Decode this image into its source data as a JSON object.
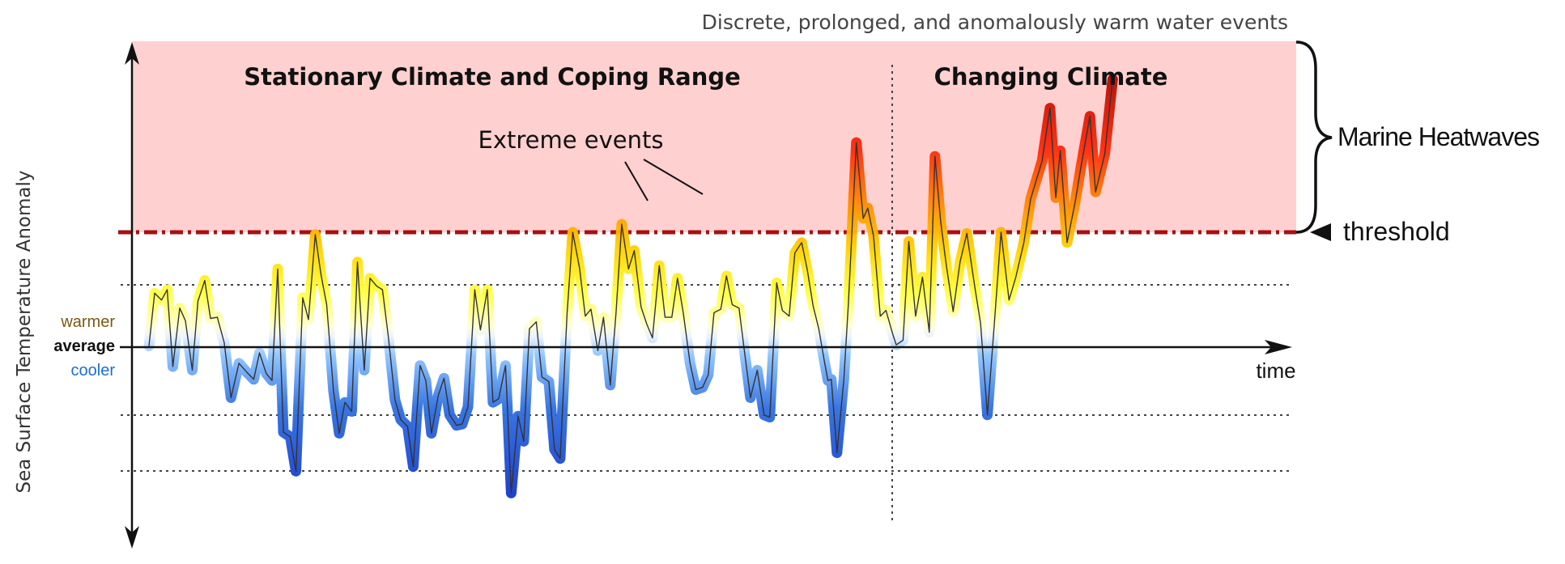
{
  "header_caption": "Discrete, prolonged, and anomalously warm water events",
  "regions": {
    "stationary": "Stationary Climate and Coping Range",
    "changing": "Changing Climate"
  },
  "annotations": {
    "extreme_events": "Extreme events",
    "marine_heatwaves": "Marine Heatwaves",
    "threshold": "threshold"
  },
  "axis": {
    "y_title": "Sea Surface Temperature Anomaly",
    "x_title": "time",
    "y_ticks": {
      "warmer": "warmer",
      "average": "average",
      "cooler": "cooler"
    }
  },
  "colors": {
    "heatwave_band": "#ffd0d0",
    "threshold_line": "#a81010",
    "warmer_label": "#7a5a10",
    "cooler_label": "#1a6fd0",
    "line": "#333333"
  },
  "chart_data": {
    "type": "line",
    "xlabel": "time",
    "ylabel": "Sea Surface Temperature Anomaly",
    "threshold": 1.0,
    "reference_levels": [
      0.55,
      0,
      -0.58,
      -1.03
    ],
    "regime_change_at": 0.55,
    "ylim": [
      -1.6,
      2.55
    ],
    "x_range": [
      0,
      1
    ],
    "series": [
      {
        "values": [
          [
            0.0,
            0.01
          ],
          [
            0.005,
            0.47
          ],
          [
            0.011,
            0.41
          ],
          [
            0.016,
            0.5
          ],
          [
            0.021,
            -0.17
          ],
          [
            0.027,
            0.34
          ],
          [
            0.032,
            0.23
          ],
          [
            0.038,
            -0.2
          ],
          [
            0.043,
            0.4
          ],
          [
            0.049,
            0.58
          ],
          [
            0.054,
            0.25
          ],
          [
            0.06,
            0.26
          ],
          [
            0.066,
            0.04
          ],
          [
            0.072,
            -0.44
          ],
          [
            0.079,
            -0.14
          ],
          [
            0.086,
            -0.22
          ],
          [
            0.092,
            -0.28
          ],
          [
            0.097,
            -0.05
          ],
          [
            0.103,
            -0.23
          ],
          [
            0.108,
            -0.29
          ],
          [
            0.113,
            0.68
          ],
          [
            0.118,
            -0.74
          ],
          [
            0.124,
            -0.78
          ],
          [
            0.129,
            -1.08
          ],
          [
            0.135,
            0.43
          ],
          [
            0.14,
            0.24
          ],
          [
            0.146,
            0.98
          ],
          [
            0.151,
            0.63
          ],
          [
            0.156,
            0.37
          ],
          [
            0.162,
            -0.38
          ],
          [
            0.167,
            -0.75
          ],
          [
            0.172,
            -0.48
          ],
          [
            0.178,
            -0.56
          ],
          [
            0.183,
            0.74
          ],
          [
            0.189,
            -0.2
          ],
          [
            0.194,
            0.6
          ],
          [
            0.2,
            0.53
          ],
          [
            0.205,
            0.5
          ],
          [
            0.21,
            0.1
          ],
          [
            0.216,
            -0.46
          ],
          [
            0.221,
            -0.63
          ],
          [
            0.227,
            -0.69
          ],
          [
            0.232,
            -1.04
          ],
          [
            0.238,
            -0.16
          ],
          [
            0.243,
            -0.29
          ],
          [
            0.248,
            -0.75
          ],
          [
            0.254,
            -0.42
          ],
          [
            0.259,
            -0.27
          ],
          [
            0.264,
            -0.59
          ],
          [
            0.27,
            -0.68
          ],
          [
            0.275,
            -0.67
          ],
          [
            0.28,
            -0.52
          ],
          [
            0.286,
            0.5
          ],
          [
            0.291,
            0.15
          ],
          [
            0.297,
            0.5
          ],
          [
            0.302,
            -0.48
          ],
          [
            0.307,
            -0.45
          ],
          [
            0.313,
            -0.16
          ],
          [
            0.318,
            -1.27
          ],
          [
            0.324,
            -0.6
          ],
          [
            0.329,
            -0.82
          ],
          [
            0.334,
            0.16
          ],
          [
            0.34,
            0.22
          ],
          [
            0.345,
            -0.26
          ],
          [
            0.351,
            -0.3
          ],
          [
            0.356,
            -0.89
          ],
          [
            0.361,
            -0.97
          ],
          [
            0.367,
            0.29
          ],
          [
            0.372,
            1.0
          ],
          [
            0.378,
            0.69
          ],
          [
            0.383,
            0.27
          ],
          [
            0.388,
            0.33
          ],
          [
            0.394,
            -0.03
          ],
          [
            0.399,
            0.26
          ],
          [
            0.405,
            -0.33
          ],
          [
            0.41,
            0.3
          ],
          [
            0.415,
            1.07
          ],
          [
            0.421,
            0.68
          ],
          [
            0.426,
            0.84
          ],
          [
            0.432,
            0.35
          ],
          [
            0.437,
            0.2
          ],
          [
            0.442,
            0.08
          ],
          [
            0.448,
            0.71
          ],
          [
            0.453,
            0.26
          ],
          [
            0.459,
            0.26
          ],
          [
            0.464,
            0.6
          ],
          [
            0.469,
            0.3
          ],
          [
            0.475,
            -0.14
          ],
          [
            0.48,
            -0.37
          ],
          [
            0.486,
            -0.35
          ],
          [
            0.491,
            -0.24
          ],
          [
            0.496,
            0.3
          ],
          [
            0.502,
            0.33
          ],
          [
            0.507,
            0.62
          ],
          [
            0.512,
            0.37
          ],
          [
            0.518,
            0.34
          ],
          [
            0.523,
            -0.06
          ],
          [
            0.528,
            -0.44
          ],
          [
            0.534,
            -0.2
          ],
          [
            0.54,
            -0.59
          ],
          [
            0.545,
            -0.61
          ],
          [
            0.551,
            0.56
          ],
          [
            0.556,
            0.32
          ],
          [
            0.562,
            0.27
          ],
          [
            0.567,
            0.82
          ],
          [
            0.573,
            0.91
          ],
          [
            0.578,
            0.67
          ],
          [
            0.583,
            0.36
          ],
          [
            0.588,
            0.16
          ],
          [
            0.593,
            -0.13
          ],
          [
            0.596,
            -0.29
          ],
          [
            0.599,
            -0.28
          ],
          [
            0.604,
            -0.92
          ],
          [
            0.61,
            -0.28
          ],
          [
            0.614,
            0.38
          ],
          [
            0.621,
            1.78
          ],
          [
            0.627,
            1.12
          ],
          [
            0.631,
            1.21
          ],
          [
            0.636,
            0.97
          ],
          [
            0.642,
            0.27
          ],
          [
            0.647,
            0.32
          ],
          [
            0.653,
            0.11
          ],
          [
            0.656,
            0.02
          ],
          [
            0.662,
            0.06
          ],
          [
            0.667,
            0.92
          ],
          [
            0.673,
            0.27
          ],
          [
            0.679,
            0.61
          ],
          [
            0.685,
            0.13
          ],
          [
            0.69,
            1.66
          ],
          [
            0.695,
            1.09
          ],
          [
            0.7,
            0.71
          ],
          [
            0.706,
            0.31
          ],
          [
            0.712,
            0.74
          ],
          [
            0.718,
            0.99
          ],
          [
            0.725,
            0.52
          ],
          [
            0.73,
            0.21
          ],
          [
            0.736,
            -0.59
          ],
          [
            0.742,
            0.19
          ],
          [
            0.748,
            1.0
          ],
          [
            0.755,
            0.41
          ],
          [
            0.761,
            0.61
          ],
          [
            0.768,
            0.91
          ],
          [
            0.774,
            1.29
          ],
          [
            0.784,
            1.62
          ],
          [
            0.791,
            2.08
          ],
          [
            0.796,
            1.3
          ],
          [
            0.8,
            1.71
          ],
          [
            0.806,
            0.91
          ],
          [
            0.813,
            1.26
          ],
          [
            0.818,
            1.56
          ],
          [
            0.826,
            2.01
          ],
          [
            0.831,
            1.35
          ],
          [
            0.839,
            1.68
          ],
          [
            0.846,
            2.33
          ]
        ]
      }
    ]
  }
}
